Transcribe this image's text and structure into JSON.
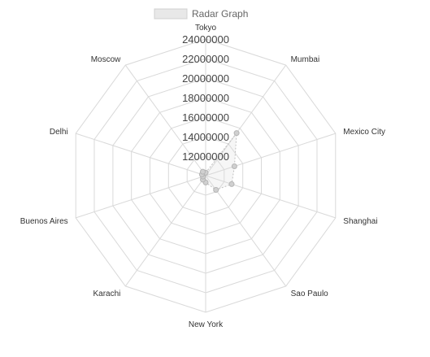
{
  "chart_data": {
    "type": "radar",
    "legend": {
      "position": "top",
      "label": "Radar Graph"
    },
    "labels": [
      "Tokyo",
      "Mumbai",
      "Mexico City",
      "Shanghai",
      "Sao Paulo",
      "New York",
      "Karachi",
      "Buenos Aires",
      "Delhi",
      "Moscow"
    ],
    "series": [
      {
        "name": "Radar Graph",
        "values": [
          10300000,
          15400000,
          13100000,
          12800000,
          11800000,
          10700000,
          10500000,
          10300000,
          10400000,
          10500000
        ]
      }
    ],
    "r_axis": {
      "min": 10000000,
      "max": 24000000,
      "ticks": [
        12000000,
        14000000,
        16000000,
        18000000,
        20000000,
        22000000,
        24000000
      ]
    },
    "grid": true,
    "colors": {
      "grid": "#d9d9d9",
      "series_line": "#bfbfbf",
      "series_fill": "rgba(220,220,220,0.25)",
      "point_fill": "#d0d0d0",
      "point_stroke": "#b5b5b5",
      "legend_box": "#e8e8e8"
    }
  }
}
